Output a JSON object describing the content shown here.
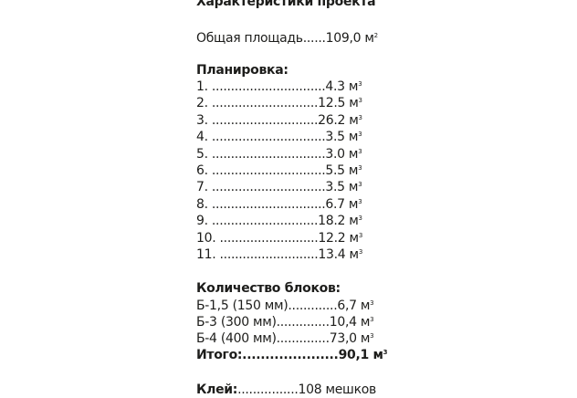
{
  "title": "Характеристики проекта",
  "total_area": {
    "text": "Общая площадь......109,0 м",
    "sup": "2"
  },
  "layout": {
    "heading": "Планировка:",
    "items": [
      {
        "text": "1. ..............................4.3 м",
        "sup": "3"
      },
      {
        "text": "2. ............................12.5 м",
        "sup": "3"
      },
      {
        "text": "3. ............................26.2 м",
        "sup": "3"
      },
      {
        "text": "4. ..............................3.5 м",
        "sup": "3"
      },
      {
        "text": "5. ..............................3.0 м",
        "sup": "3"
      },
      {
        "text": "6. ..............................5.5 м",
        "sup": "3"
      },
      {
        "text": "7. ..............................3.5 м",
        "sup": "3"
      },
      {
        "text": "8. ..............................6.7 м",
        "sup": "3"
      },
      {
        "text": "9. ............................18.2 м",
        "sup": "3"
      },
      {
        "text": "10. ..........................12.2 м",
        "sup": "3"
      },
      {
        "text": "11. ..........................13.4 м",
        "sup": "3"
      }
    ]
  },
  "blocks": {
    "heading": "Количество блоков:",
    "items": [
      {
        "text": "Б-1,5 (150 мм).............6,7 м",
        "sup": "3"
      },
      {
        "text": "Б-3 (300 мм)..............10,4 м",
        "sup": "3"
      },
      {
        "text": "Б-4 (400 мм)..............73,0 м",
        "sup": "3"
      }
    ],
    "total": {
      "text": "Итого:.....................90,1 м",
      "sup": "3"
    }
  },
  "glue": {
    "label": "Клей:",
    "value": "................108 мешков"
  }
}
